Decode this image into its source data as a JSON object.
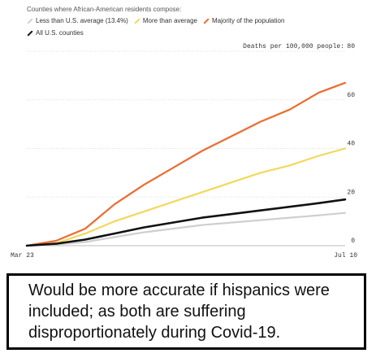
{
  "chart_data": {
    "type": "line",
    "legend_title": "Counties where African-American residents compose:",
    "unit_label": "Deaths per 100,000 people:",
    "x_labels": [
      "Mar 23",
      "Jul 10"
    ],
    "ylim": [
      0,
      80
    ],
    "yticks": [
      0,
      20,
      40,
      60,
      80
    ],
    "grid": true,
    "series": [
      {
        "name": "Less than U.S. average (13.4%)",
        "color": "#cfcfcf",
        "x": [
          0,
          10,
          20,
          30,
          40,
          50,
          60,
          70,
          80,
          90,
          100,
          109
        ],
        "values": [
          0,
          0.5,
          1.5,
          3.5,
          5.5,
          7,
          8.5,
          9.5,
          10.5,
          11.5,
          12.5,
          13.5
        ]
      },
      {
        "name": "More than average",
        "color": "#f3d85a",
        "x": [
          0,
          10,
          20,
          30,
          40,
          50,
          60,
          70,
          80,
          90,
          100,
          109
        ],
        "values": [
          0,
          1,
          5,
          10,
          14,
          18,
          22,
          26,
          30,
          33,
          37,
          40
        ]
      },
      {
        "name": "Majority of the population",
        "color": "#ee6b2f",
        "x": [
          0,
          10,
          20,
          30,
          40,
          50,
          60,
          70,
          80,
          90,
          100,
          109
        ],
        "values": [
          0,
          2,
          7,
          17,
          25,
          32,
          39,
          45,
          51,
          56,
          63,
          67
        ]
      },
      {
        "name": "All U.S. counties",
        "color": "#111111",
        "x": [
          0,
          10,
          20,
          30,
          40,
          50,
          60,
          70,
          80,
          90,
          100,
          109
        ],
        "values": [
          0,
          0.8,
          2.5,
          5,
          7.5,
          9.5,
          11.5,
          13,
          14.5,
          16,
          17.5,
          19
        ]
      }
    ]
  },
  "caption": {
    "text": "Would be more accurate if hispanics were included; as both are suffering disproportionately during Covid-19."
  }
}
